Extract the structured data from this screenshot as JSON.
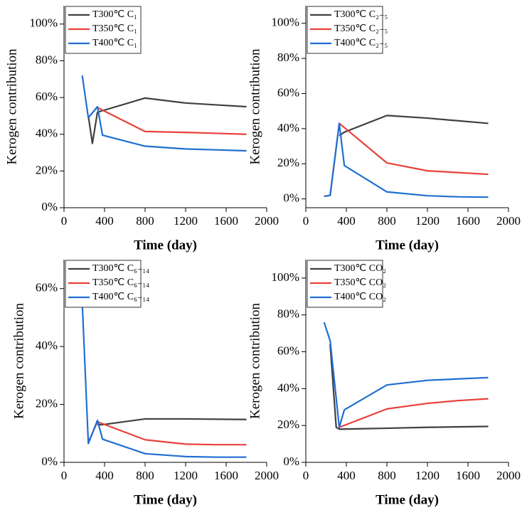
{
  "chart_data": [
    {
      "type": "line",
      "x_label": "Time (day)",
      "y_label": "Kerogen contribution",
      "xlim": [
        0,
        2000
      ],
      "xticks": [
        0,
        400,
        800,
        1200,
        1600,
        2000
      ],
      "ylim": [
        0,
        110
      ],
      "yticks": [
        {
          "value": 0,
          "label": "0%"
        },
        {
          "value": 20,
          "label": "20%"
        },
        {
          "value": 40,
          "label": "40%"
        },
        {
          "value": 60,
          "label": "60%"
        },
        {
          "value": 80,
          "label": "80%"
        },
        {
          "value": 100,
          "label": "100%"
        }
      ],
      "legend": "upper left",
      "series": [
        {
          "name": "T300℃ C₁",
          "color": "#404040",
          "x": [
            240,
            280,
            330,
            800,
            1200,
            1500,
            1800
          ],
          "values": [
            50,
            35,
            52,
            59.7,
            57,
            56,
            55
          ]
        },
        {
          "name": "T350℃ C₁",
          "color": "#e8413c",
          "x": [
            330,
            800,
            1200,
            1500,
            1800
          ],
          "values": [
            54.5,
            41.5,
            41,
            40.5,
            40
          ]
        },
        {
          "name": "T400℃ C₁",
          "color": "#1f6fd1",
          "x": [
            180,
            240,
            330,
            380,
            800,
            1200,
            1500,
            1800
          ],
          "values": [
            72,
            49,
            55,
            39.5,
            33.5,
            32,
            31.5,
            31
          ]
        }
      ]
    },
    {
      "type": "line",
      "x_label": "Time (day)",
      "y_label": "Kerogen contribution",
      "xlim": [
        0,
        2000
      ],
      "xticks": [
        0,
        400,
        800,
        1200,
        1600,
        2000
      ],
      "ylim": [
        -5,
        110
      ],
      "yticks": [
        {
          "value": 0,
          "label": "0%"
        },
        {
          "value": 20,
          "label": "20%"
        },
        {
          "value": 40,
          "label": "40%"
        },
        {
          "value": 60,
          "label": "60%"
        },
        {
          "value": 80,
          "label": "80%"
        },
        {
          "value": 100,
          "label": "100%"
        }
      ],
      "legend": "upper left",
      "series": [
        {
          "name": "T300℃ C₂₋₅",
          "color": "#404040",
          "x": [
            330,
            380,
            800,
            1200,
            1800
          ],
          "values": [
            36,
            38,
            47.5,
            46,
            43
          ]
        },
        {
          "name": "T350℃ C₂₋₅",
          "color": "#e8413c",
          "x": [
            180,
            240,
            330,
            800,
            1200,
            1800
          ],
          "values": [
            1.5,
            2,
            43,
            20.5,
            16,
            14
          ]
        },
        {
          "name": "T400℃ C₂₋₅",
          "color": "#1f6fd1",
          "x": [
            180,
            240,
            330,
            380,
            800,
            1200,
            1500,
            1800
          ],
          "values": [
            1.5,
            2,
            43,
            19,
            4,
            1.8,
            1.2,
            1
          ]
        }
      ]
    },
    {
      "type": "line",
      "x_label": "Time (day)",
      "y_label": "Kerogen contribution",
      "xlim": [
        0,
        2000
      ],
      "xticks": [
        0,
        400,
        800,
        1200,
        1600,
        2000
      ],
      "ylim": [
        0,
        70
      ],
      "yticks": [
        {
          "value": 0,
          "label": "0%"
        },
        {
          "value": 20,
          "label": "20%"
        },
        {
          "value": 40,
          "label": "40%"
        },
        {
          "value": 60,
          "label": "60%"
        }
      ],
      "legend": "upper left",
      "series": [
        {
          "name": "T300℃ C₆₋₁₄",
          "color": "#404040",
          "x": [
            330,
            380,
            800,
            1200,
            1800
          ],
          "values": [
            13,
            13,
            15,
            15,
            14.8
          ]
        },
        {
          "name": "T350℃ C₆₋₁₄",
          "color": "#e8413c",
          "x": [
            240,
            330,
            800,
            1200,
            1500,
            1800
          ],
          "values": [
            7,
            14,
            7.8,
            6.3,
            6.1,
            6.1
          ]
        },
        {
          "name": "T400℃ C₆₋₁₄",
          "color": "#1f6fd1",
          "x": [
            180,
            240,
            330,
            380,
            800,
            1200,
            1500,
            1800
          ],
          "values": [
            55,
            6.5,
            14.5,
            8,
            3,
            2,
            1.8,
            1.8
          ]
        }
      ]
    },
    {
      "type": "line",
      "x_label": "Time (day)",
      "y_label": "Kerogen contribution",
      "xlim": [
        0,
        2000
      ],
      "xticks": [
        0,
        400,
        800,
        1200,
        1600,
        2000
      ],
      "ylim": [
        0,
        110
      ],
      "yticks": [
        {
          "value": 0,
          "label": "0%"
        },
        {
          "value": 20,
          "label": "20%"
        },
        {
          "value": 40,
          "label": "40%"
        },
        {
          "value": 60,
          "label": "60%"
        },
        {
          "value": 80,
          "label": "80%"
        },
        {
          "value": 100,
          "label": "100%"
        }
      ],
      "legend": "upper left",
      "series": [
        {
          "name": "T300℃ CO₂",
          "color": "#404040",
          "x": [
            240,
            300,
            330,
            800,
            1200,
            1800
          ],
          "values": [
            64,
            19,
            18,
            18.5,
            19,
            19.5
          ]
        },
        {
          "name": "T350℃ CO₂",
          "color": "#e8413c",
          "x": [
            330,
            800,
            1200,
            1500,
            1800
          ],
          "values": [
            19,
            29,
            32,
            33.5,
            34.5
          ]
        },
        {
          "name": "T400℃ CO₂",
          "color": "#1f6fd1",
          "x": [
            180,
            240,
            330,
            380,
            800,
            1200,
            1800
          ],
          "values": [
            76,
            66,
            19,
            28.5,
            42,
            44.5,
            46
          ]
        }
      ]
    }
  ]
}
